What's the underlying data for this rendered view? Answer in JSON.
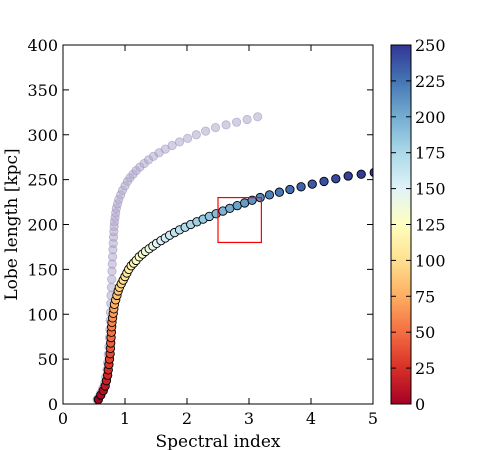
{
  "chart_data": {
    "type": "scatter",
    "xlabel": "Spectral index",
    "ylabel": "Lobe length [kpc]",
    "xlim": [
      0,
      5
    ],
    "ylim": [
      0,
      400
    ],
    "xticks": [
      "0",
      "1",
      "2",
      "3",
      "4",
      "5"
    ],
    "yticks": [
      "0",
      "50",
      "100",
      "150",
      "200",
      "250",
      "300",
      "350",
      "400"
    ],
    "grid": false,
    "colorbar": {
      "range": [
        0,
        250
      ],
      "ticks": [
        "0",
        "25",
        "50",
        "75",
        "100",
        "125",
        "150",
        "175",
        "200",
        "225",
        "250"
      ],
      "colormap": "RdYlBu",
      "colors": [
        "#a50026",
        "#d73027",
        "#f46d43",
        "#fdae61",
        "#fee090",
        "#ffffbf",
        "#e0f3f8",
        "#abd9e9",
        "#74add1",
        "#4575b4",
        "#313695"
      ]
    },
    "series": [
      {
        "style": "faded",
        "color": "#b0a8cc",
        "x": [
          0.55,
          0.58,
          0.61,
          0.64,
          0.67,
          0.69,
          0.71,
          0.72,
          0.73,
          0.74,
          0.75,
          0.755,
          0.76,
          0.765,
          0.77,
          0.775,
          0.78,
          0.785,
          0.79,
          0.795,
          0.8,
          0.805,
          0.81,
          0.815,
          0.82,
          0.825,
          0.83,
          0.84,
          0.85,
          0.86,
          0.88,
          0.9,
          0.93,
          0.96,
          1.0,
          1.04,
          1.08,
          1.13,
          1.18,
          1.24,
          1.31,
          1.38,
          1.46,
          1.55,
          1.65,
          1.76,
          1.88,
          2.01,
          2.15,
          2.3,
          2.46,
          2.63,
          2.8,
          2.97,
          3.14
        ],
        "y": [
          5,
          8,
          12,
          17,
          23,
          30,
          38,
          46,
          55,
          64,
          74,
          83,
          93,
          102,
          112,
          121,
          130,
          139,
          148,
          156,
          164,
          172,
          179,
          186,
          192,
          198,
          203,
          208,
          213,
          218,
          223,
          228,
          233,
          238,
          243,
          248,
          252,
          256,
          260,
          264,
          268,
          272,
          276,
          280,
          284,
          288,
          292,
          296,
          300,
          304,
          308,
          311,
          314,
          317,
          320
        ]
      },
      {
        "style": "colored",
        "x": [
          0.57,
          0.61,
          0.65,
          0.68,
          0.7,
          0.72,
          0.73,
          0.74,
          0.75,
          0.76,
          0.765,
          0.77,
          0.775,
          0.78,
          0.785,
          0.79,
          0.8,
          0.81,
          0.82,
          0.83,
          0.85,
          0.87,
          0.89,
          0.91,
          0.94,
          0.97,
          1.0,
          1.03,
          1.06,
          1.1,
          1.14,
          1.18,
          1.23,
          1.28,
          1.33,
          1.39,
          1.45,
          1.51,
          1.58,
          1.65,
          1.72,
          1.8,
          1.88,
          1.97,
          2.06,
          2.16,
          2.26,
          2.36,
          2.47,
          2.58,
          2.69,
          2.81,
          2.93,
          3.05,
          3.18,
          3.33,
          3.49,
          3.66,
          3.84,
          4.02,
          4.21,
          4.4,
          4.6,
          4.81,
          5.02
        ],
        "y": [
          5,
          10,
          15,
          20,
          26,
          32,
          38,
          44,
          50,
          56,
          62,
          68,
          74,
          80,
          86,
          91,
          96,
          101,
          106,
          111,
          116,
          121,
          126,
          130,
          134,
          138,
          142,
          146,
          150,
          154,
          157,
          160,
          164,
          167,
          170,
          173,
          176,
          179,
          182,
          185,
          188,
          191,
          194,
          197,
          200,
          203,
          206,
          209,
          212,
          215,
          218,
          221,
          224,
          227,
          230,
          233,
          236,
          239,
          242,
          245,
          248,
          251,
          254,
          256,
          258
        ],
        "c": [
          0,
          4,
          8,
          12,
          16,
          20,
          24,
          28,
          32,
          36,
          40,
          44,
          48,
          52,
          56,
          60,
          64,
          68,
          72,
          76,
          80,
          84,
          88,
          92,
          96,
          100,
          104,
          108,
          112,
          116,
          120,
          124,
          128,
          132,
          136,
          140,
          144,
          148,
          152,
          156,
          160,
          164,
          168,
          172,
          176,
          180,
          184,
          188,
          192,
          196,
          200,
          204,
          208,
          212,
          216,
          220,
          224,
          228,
          232,
          236,
          240,
          243,
          246,
          248,
          250
        ]
      }
    ],
    "highlight_box": {
      "x": [
        2.5,
        3.2
      ],
      "y": [
        180,
        230
      ],
      "color": "#ff0000"
    }
  }
}
